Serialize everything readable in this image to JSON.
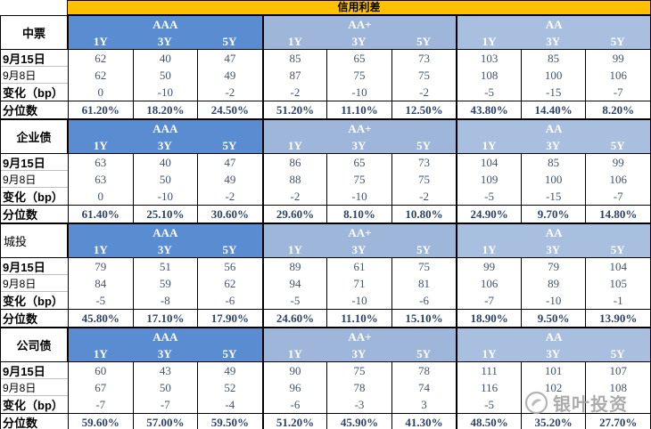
{
  "title": "信用利差",
  "ratings": [
    "AAA",
    "AA+",
    "AA"
  ],
  "tenors": [
    "1Y",
    "3Y",
    "5Y"
  ],
  "row_labels": [
    "9月15日",
    "9月8日",
    "变化（bp）",
    "分位数"
  ],
  "row_label_bold": [
    true,
    false,
    true,
    true
  ],
  "colors": {
    "title_bg": "#FFC000",
    "aaa_header_bg": "#5A8CD2",
    "aa_plus_header_bg": "#9DB6DA",
    "aa_header_bg": "#A9BFDF",
    "header_text": "#FFFFFF",
    "value_text": "#44546A",
    "percentile_text": "#2E4369",
    "watermark_text": "#A3A3A3"
  },
  "watermark": {
    "text": "银叶投资",
    "icon": "yinye-logo"
  },
  "sections": [
    {
      "name": "中票",
      "name_align": "center",
      "rows": [
        [
          "62",
          "40",
          "47",
          "85",
          "65",
          "73",
          "103",
          "85",
          "99"
        ],
        [
          "62",
          "50",
          "49",
          "87",
          "75",
          "75",
          "108",
          "100",
          "106"
        ],
        [
          "0",
          "-10",
          "-2",
          "-2",
          "-10",
          "-2",
          "-5",
          "-15",
          "-7"
        ],
        [
          "61.20%",
          "18.20%",
          "24.50%",
          "51.20%",
          "11.10%",
          "12.50%",
          "43.80%",
          "14.40%",
          "8.20%"
        ]
      ]
    },
    {
      "name": "企业债",
      "name_align": "center",
      "rows": [
        [
          "63",
          "40",
          "47",
          "86",
          "65",
          "73",
          "104",
          "85",
          "99"
        ],
        [
          "63",
          "50",
          "49",
          "88",
          "75",
          "75",
          "109",
          "100",
          "106"
        ],
        [
          "0",
          "-10",
          "-2",
          "-2",
          "-10",
          "-2",
          "-5",
          "-15",
          "-7"
        ],
        [
          "61.40%",
          "25.10%",
          "30.60%",
          "29.60%",
          "8.10%",
          "10.80%",
          "24.90%",
          "9.70%",
          "14.80%"
        ]
      ]
    },
    {
      "name": "城投",
      "name_align": "left",
      "rows": [
        [
          "79",
          "51",
          "56",
          "89",
          "61",
          "75",
          "99",
          "79",
          "104"
        ],
        [
          "84",
          "59",
          "62",
          "94",
          "71",
          "81",
          "106",
          "89",
          "105"
        ],
        [
          "-5",
          "-8",
          "-6",
          "-5",
          "-10",
          "-6",
          "-7",
          "-10",
          "-1"
        ],
        [
          "45.80%",
          "17.10%",
          "17.90%",
          "24.60%",
          "11.10%",
          "15.10%",
          "18.90%",
          "9.50%",
          "13.90%"
        ]
      ]
    },
    {
      "name": "公司债",
      "name_align": "center",
      "rows": [
        [
          "60",
          "43",
          "49",
          "90",
          "75",
          "78",
          "111",
          "101",
          "107"
        ],
        [
          "67",
          "50",
          "52",
          "96",
          "78",
          "74",
          "116",
          "102",
          "108"
        ],
        [
          "-7",
          "-7",
          "-4",
          "-6",
          "-3",
          "3",
          "-5",
          "",
          ""
        ],
        [
          "59.60%",
          "57.00%",
          "59.50%",
          "51.20%",
          "45.90%",
          "41.30%",
          "48.50%",
          "35.20%",
          "27.70%"
        ]
      ]
    }
  ]
}
